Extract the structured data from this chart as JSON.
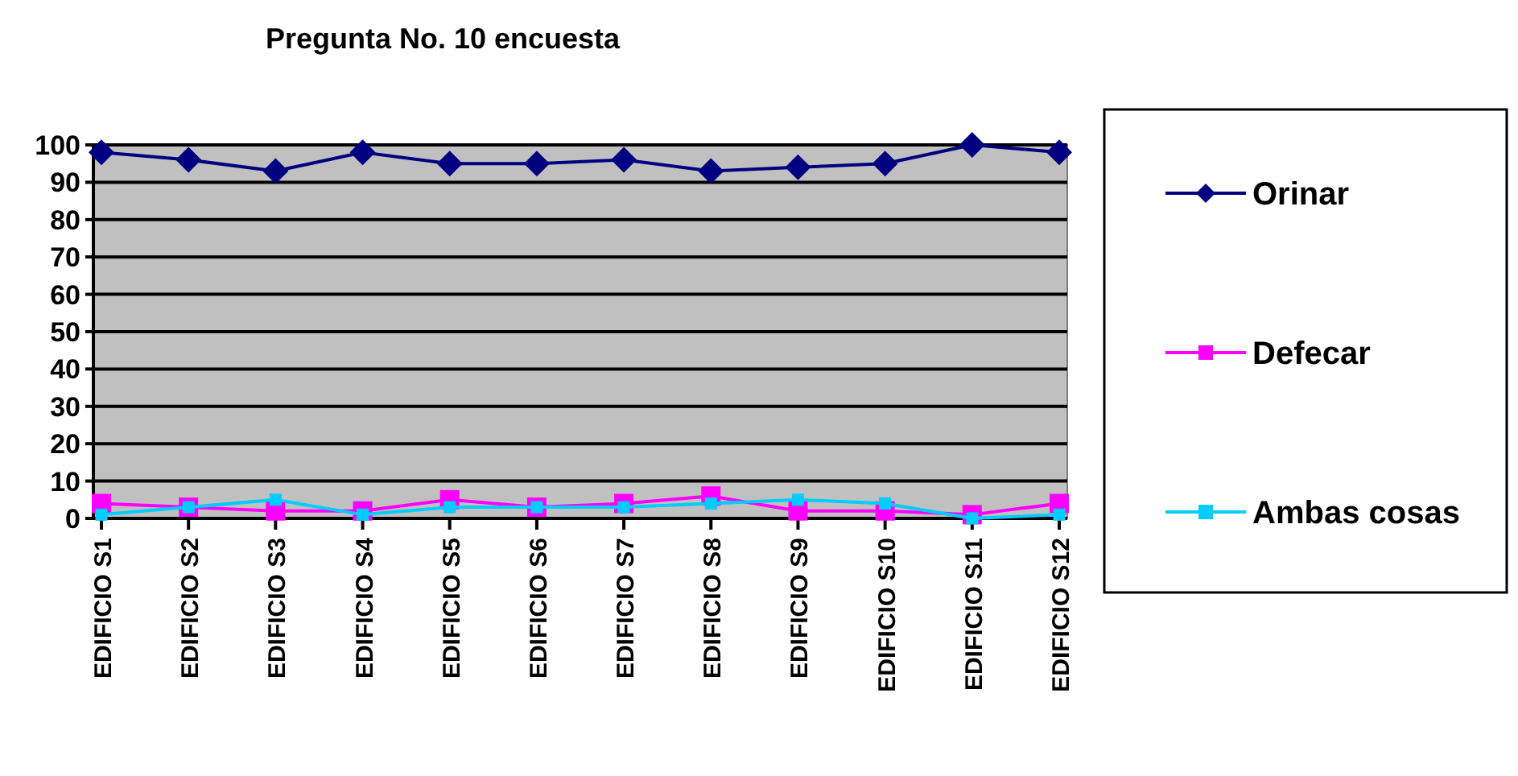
{
  "chart_data": {
    "type": "line",
    "title": "Pregunta No. 10 encuesta",
    "categories": [
      "EDIFICIO S1",
      "EDIFICIO S2",
      "EDIFICIO S3",
      "EDIFICIO S4",
      "EDIFICIO S5",
      "EDIFICIO S6",
      "EDIFICIO S7",
      "EDIFICIO S8",
      "EDIFICIO S9",
      "EDIFICIO S10",
      "EDIFICIO S11",
      "EDIFICIO S12"
    ],
    "series": [
      {
        "name": "Orinar",
        "color": "#000080",
        "marker": "diamond",
        "values": [
          98,
          96,
          93,
          98,
          95,
          95,
          96,
          93,
          94,
          95,
          100,
          98
        ]
      },
      {
        "name": "Defecar",
        "color": "#ff00ff",
        "marker": "square",
        "values": [
          4,
          3,
          2,
          2,
          5,
          3,
          4,
          6,
          2,
          2,
          1,
          4
        ]
      },
      {
        "name": "Ambas cosas",
        "color": "#00ccff",
        "marker": "square",
        "values": [
          1,
          3,
          5,
          1,
          3,
          3,
          3,
          4,
          5,
          4,
          0,
          1
        ]
      }
    ],
    "ylim": [
      0,
      100
    ],
    "yticks": [
      0,
      10,
      20,
      30,
      40,
      50,
      60,
      70,
      80,
      90,
      100
    ],
    "grid": "y",
    "legend": "right"
  }
}
